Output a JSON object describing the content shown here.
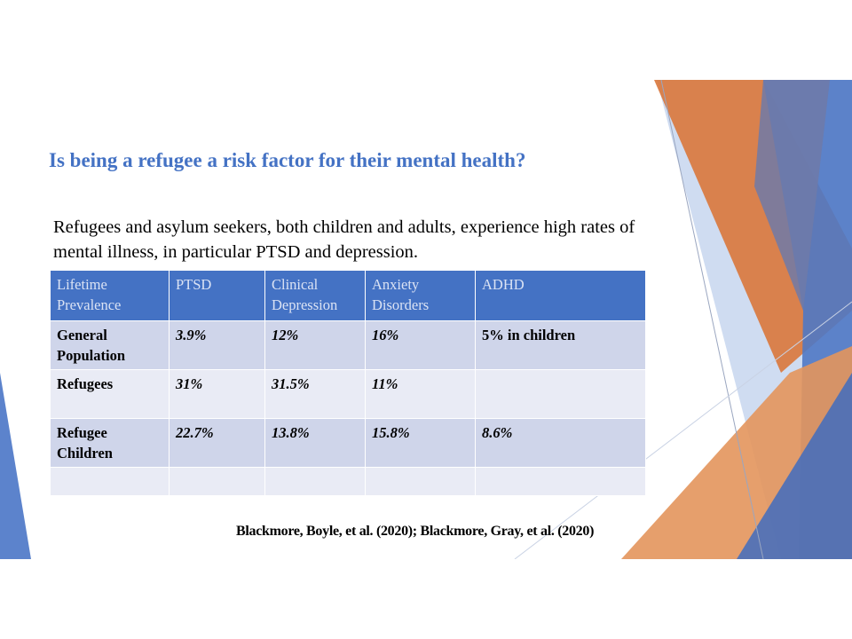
{
  "slide": {
    "title": "Is being a refugee a risk factor for their mental health?",
    "body": "Refugees and asylum seekers, both children and adults, experience high rates of mental illness, in particular PTSD and depression.",
    "citation": "Blackmore, Boyle, et al. (2020); Blackmore, Gray, et al. (2020)"
  },
  "table": {
    "headers": [
      "Lifetime Prevalence",
      "PTSD",
      "Clinical Depression",
      "Anxiety Disorders",
      "ADHD"
    ],
    "rows": [
      [
        "General Population",
        "3.9%",
        "12%",
        "16%",
        "5% in children"
      ],
      [
        "Refugees",
        "31%",
        "31.5%",
        "11%",
        ""
      ],
      [
        "Refugee Children",
        "22.7%",
        "13.8%",
        "15.8%",
        "8.6%"
      ],
      [
        "",
        "",
        "",
        "",
        ""
      ]
    ]
  },
  "colors": {
    "title": "#4472c4",
    "header_bg": "#4472c4",
    "header_text": "#dbe3f4",
    "row_odd": "#cfd5ea",
    "row_even": "#e9ebf5",
    "accent_orange": "#e0854a",
    "accent_blue": "#4472c4"
  }
}
